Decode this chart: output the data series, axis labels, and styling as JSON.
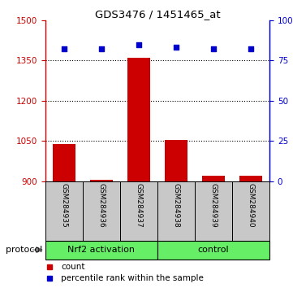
{
  "title": "GDS3476 / 1451465_at",
  "samples": [
    "GSM284935",
    "GSM284936",
    "GSM284937",
    "GSM284938",
    "GSM284939",
    "GSM284940"
  ],
  "counts": [
    1040,
    905,
    1360,
    1055,
    920,
    920
  ],
  "percentile_ranks": [
    82,
    82,
    85,
    83,
    82,
    82
  ],
  "ylim_left": [
    900,
    1500
  ],
  "ylim_right": [
    0,
    100
  ],
  "yticks_left": [
    900,
    1050,
    1200,
    1350,
    1500
  ],
  "yticks_right": [
    0,
    25,
    50,
    75,
    100
  ],
  "ytick_labels_right": [
    "0",
    "25",
    "50",
    "75",
    "100%"
  ],
  "bar_color": "#cc0000",
  "scatter_color": "#0000cc",
  "protocol_groups": [
    {
      "label": "Nrf2 activation",
      "start": 0,
      "end": 3
    },
    {
      "label": "control",
      "start": 3,
      "end": 6
    }
  ],
  "protocol_color": "#66ee66",
  "tick_bg_color": "#c8c8c8",
  "legend_count_color": "#cc0000",
  "legend_percentile_color": "#0000cc",
  "grid_color": "#000000",
  "left_axis_color": "#cc0000",
  "right_axis_color": "#0000cc",
  "n_samples": 6
}
